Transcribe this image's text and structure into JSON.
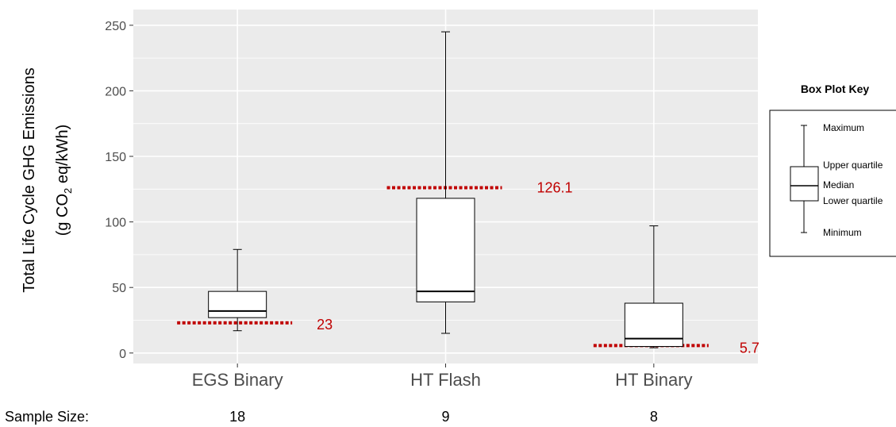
{
  "chart_data": {
    "type": "box",
    "ylabel_line1": "Total Life Cycle GHG Emissions",
    "ylabel_line2_parts": [
      "(g CO",
      "2",
      " eq/kWh)"
    ],
    "ylim": [
      -8,
      262
    ],
    "yticks": [
      0,
      50,
      100,
      150,
      200,
      250
    ],
    "grid": true,
    "categories": [
      "EGS Binary",
      "HT Flash",
      "HT Binary"
    ],
    "boxes": [
      {
        "category": "EGS Binary",
        "min": 17,
        "q1": 27,
        "median": 32,
        "q3": 47,
        "max": 79
      },
      {
        "category": "HT Flash",
        "min": 15,
        "q1": 39,
        "median": 47,
        "q3": 118,
        "max": 245
      },
      {
        "category": "HT Binary",
        "min": 4,
        "q1": 5,
        "median": 11,
        "q3": 38,
        "max": 97
      }
    ],
    "reference_lines": [
      {
        "category": "EGS Binary",
        "value": 23,
        "label": "23",
        "color": "#c00000"
      },
      {
        "category": "HT Flash",
        "value": 126.1,
        "label": "126.1",
        "color": "#c00000"
      },
      {
        "category": "HT Binary",
        "value": 5.7,
        "label": "5.7",
        "color": "#c00000"
      }
    ],
    "sample_size_label": "Sample Size:",
    "sample_sizes": [
      "18",
      "9",
      "8"
    ],
    "panel_color": "#ebebeb",
    "grid_color": "#ffffff"
  },
  "legend": {
    "title": "Box Plot Key",
    "labels": [
      "Maximum",
      "Upper quartile",
      "Median",
      "Lower quartile",
      "Minimum"
    ]
  }
}
